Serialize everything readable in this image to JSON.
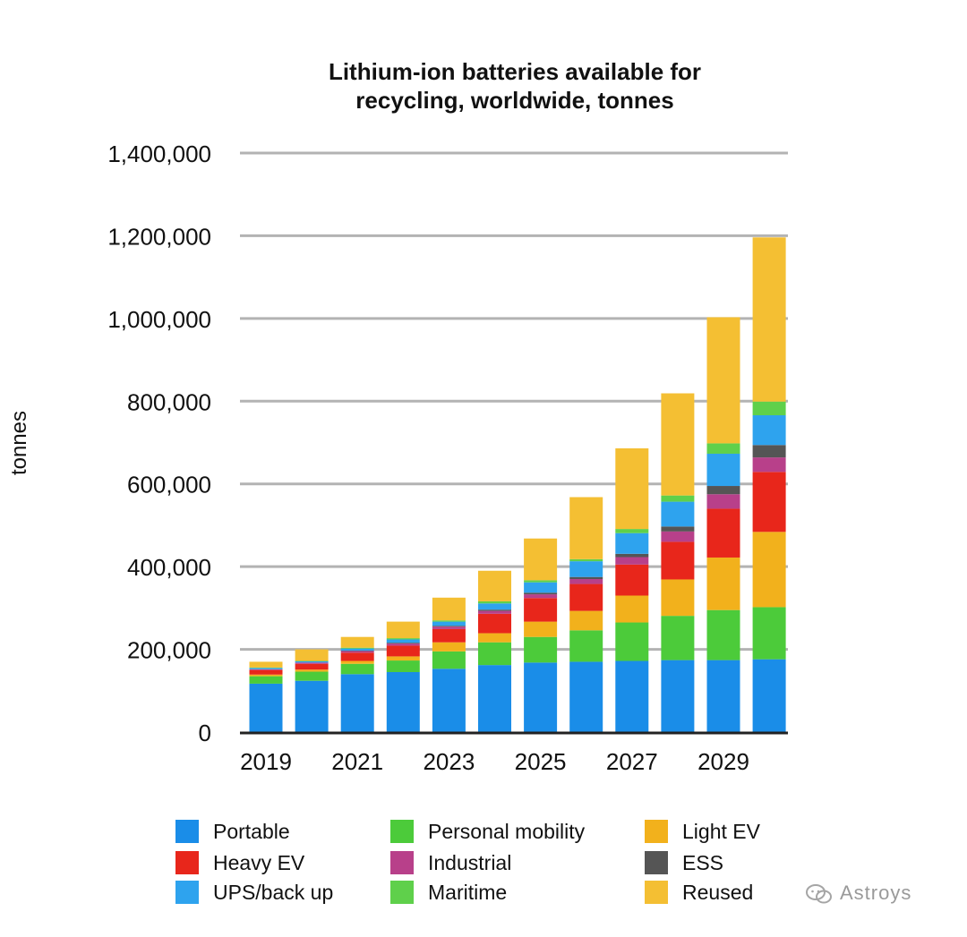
{
  "watermark": {
    "text": "Astroys",
    "icon": "wechat-icon"
  },
  "chart_data": {
    "type": "bar",
    "stacked": true,
    "title": [
      "Lithium-ion batteries available for",
      "recycling, worldwide, tonnes"
    ],
    "ylabel": "tonnes",
    "xlabel": "",
    "ylim": [
      0,
      1400000
    ],
    "yticks": [
      0,
      200000,
      400000,
      600000,
      800000,
      1000000,
      1200000,
      1400000
    ],
    "ytick_labels": [
      "0",
      "200,000",
      "400,000",
      "600,000",
      "800,000",
      "1,000,000",
      "1,200,000",
      "1,400,000"
    ],
    "categories": [
      "2019",
      "2020",
      "2021",
      "2022",
      "2023",
      "2024",
      "2025",
      "2026",
      "2027",
      "2028",
      "2029",
      "2030"
    ],
    "xtick_labels": [
      "2019",
      "",
      "2021",
      "",
      "2023",
      "",
      "2025",
      "",
      "2027",
      "",
      "2029",
      ""
    ],
    "grid": true,
    "legend_position": "bottom",
    "series": [
      {
        "name": "Portable",
        "color": "#1a8de8",
        "values": [
          117000,
          124000,
          140000,
          145000,
          153000,
          162000,
          168000,
          170000,
          172000,
          174000,
          174000,
          176000
        ]
      },
      {
        "name": "Personal mobility",
        "color": "#4ccb3a",
        "values": [
          18000,
          22000,
          25000,
          28000,
          42000,
          55000,
          62000,
          76000,
          93000,
          107000,
          121000,
          126000
        ]
      },
      {
        "name": "Light EV",
        "color": "#f2b11c",
        "values": [
          4000,
          5000,
          7000,
          10000,
          22000,
          22000,
          37000,
          47000,
          65000,
          88000,
          127000,
          182000
        ]
      },
      {
        "name": "Heavy EV",
        "color": "#e8261b",
        "values": [
          11000,
          14000,
          20000,
          26000,
          32000,
          47000,
          57000,
          65000,
          75000,
          91000,
          118000,
          145000
        ]
      },
      {
        "name": "Industrial",
        "color": "#b8408a",
        "values": [
          2000,
          3000,
          4000,
          5000,
          6000,
          7000,
          9000,
          12000,
          18000,
          25000,
          35000,
          35000
        ]
      },
      {
        "name": "ESS",
        "color": "#555555",
        "values": [
          0,
          0,
          1000,
          2000,
          2000,
          3000,
          4000,
          5000,
          8000,
          12000,
          20000,
          30000
        ]
      },
      {
        "name": "UPS/back up",
        "color": "#2ea3ee",
        "values": [
          3000,
          3000,
          5000,
          8000,
          10000,
          15000,
          25000,
          38000,
          50000,
          60000,
          78000,
          72000
        ]
      },
      {
        "name": "Maritime",
        "color": "#5fd04b",
        "values": [
          1000,
          1000,
          2000,
          3000,
          3000,
          5000,
          5000,
          5000,
          10000,
          15000,
          25000,
          33000
        ]
      },
      {
        "name": "Reused",
        "color": "#f4bf33",
        "values": [
          14000,
          28000,
          26000,
          40000,
          55000,
          74000,
          101000,
          150000,
          195000,
          247000,
          305000,
          397000
        ]
      }
    ]
  },
  "legend": {
    "columns": [
      [
        "Portable",
        "Heavy EV",
        "UPS/back up"
      ],
      [
        "Personal mobility",
        "Industrial",
        "Maritime"
      ],
      [
        "Light EV",
        "ESS",
        "Reused"
      ]
    ]
  }
}
